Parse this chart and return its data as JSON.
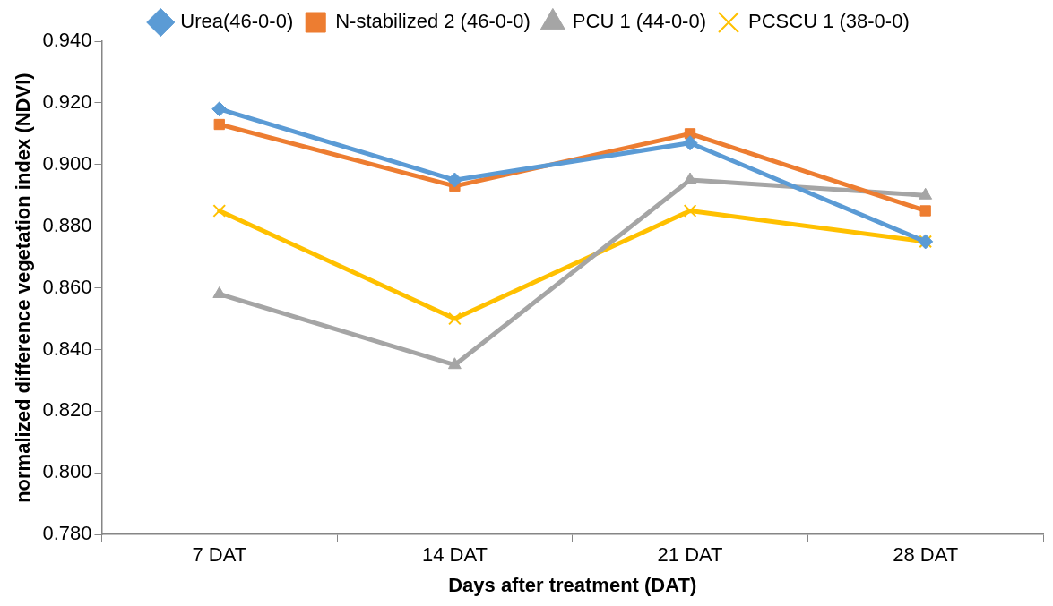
{
  "chart_data": {
    "type": "line",
    "xlabel": "Days after treatment (DAT)",
    "ylabel": "normalized difference vegetation index (NDVI)",
    "categories": [
      "7 DAT",
      "14 DAT",
      "21 DAT",
      "28 DAT"
    ],
    "series": [
      {
        "name": "Urea(46-0-0)",
        "color": "#5b9bd5",
        "marker": "diamond",
        "values": [
          0.918,
          0.895,
          0.907,
          0.875
        ]
      },
      {
        "name": "N-stabilized 2 (46-0-0)",
        "color": "#ed7d31",
        "marker": "square",
        "values": [
          0.913,
          0.893,
          0.91,
          0.885
        ]
      },
      {
        "name": "PCU 1 (44-0-0)",
        "color": "#a5a5a5",
        "marker": "triangle",
        "values": [
          0.858,
          0.835,
          0.895,
          0.89
        ]
      },
      {
        "name": "PCSCU 1 (38-0-0)",
        "color": "#ffc000",
        "marker": "cross",
        "values": [
          0.885,
          0.85,
          0.885,
          0.875
        ]
      }
    ],
    "ylim": [
      0.78,
      0.94
    ],
    "yticks": [
      {
        "value": 0.78,
        "label": "0.780"
      },
      {
        "value": 0.8,
        "label": "0.800"
      },
      {
        "value": 0.82,
        "label": "0.820"
      },
      {
        "value": 0.84,
        "label": "0.840"
      },
      {
        "value": 0.86,
        "label": "0.860"
      },
      {
        "value": 0.88,
        "label": "0.880"
      },
      {
        "value": 0.9,
        "label": "0.900"
      },
      {
        "value": 0.92,
        "label": "0.920"
      },
      {
        "value": 0.94,
        "label": "0.940"
      }
    ],
    "grid": false,
    "legend": "top",
    "line_style": "solid"
  }
}
